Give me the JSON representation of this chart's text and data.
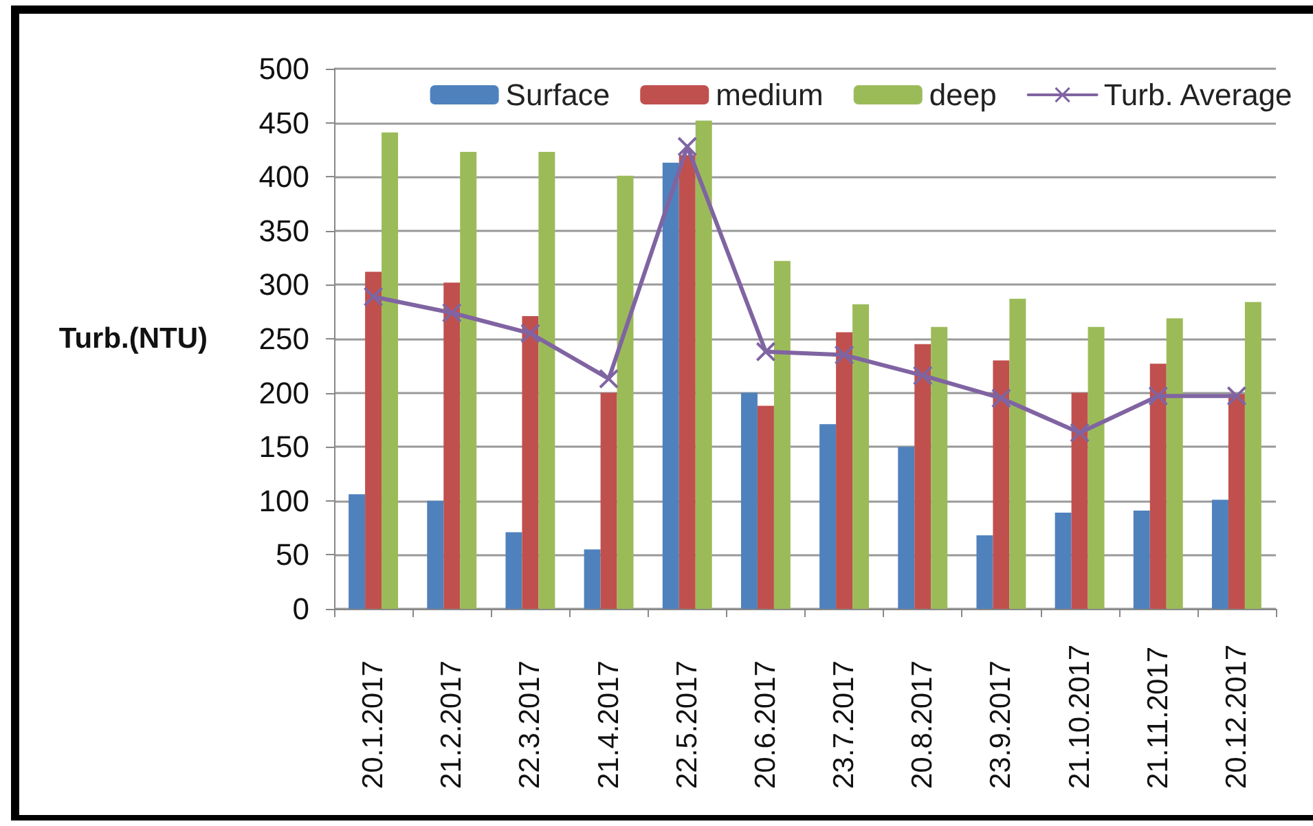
{
  "chart_data": {
    "type": "bar",
    "ylabel": "Turb.(NTU)",
    "categories": [
      "20.1.2017",
      "21.2.2017",
      "22.3.2017",
      "21.4.2017",
      "22.5.2017",
      "20.6.2017",
      "23.7.2017",
      "20.8.2017",
      "23.9.2017",
      "21.10.2017",
      "21.11.2017",
      "20.12.2017"
    ],
    "series": [
      {
        "name": "Surface",
        "color": "#4f81bd",
        "values": [
          106,
          100,
          71,
          55,
          413,
          200,
          171,
          150,
          68,
          89,
          91,
          101
        ]
      },
      {
        "name": "medium",
        "color": "#c0504d",
        "values": [
          312,
          302,
          271,
          200,
          420,
          188,
          256,
          245,
          230,
          200,
          227,
          199
        ]
      },
      {
        "name": "deep",
        "color": "#9bbb59",
        "values": [
          441,
          423,
          423,
          401,
          452,
          322,
          282,
          261,
          287,
          261,
          269,
          284
        ]
      },
      {
        "name": "Turb. Average",
        "type": "line",
        "color": "#8064a2",
        "values": [
          289,
          274,
          255,
          213,
          428,
          238,
          235,
          216,
          195,
          163,
          197,
          197
        ]
      }
    ],
    "ylim": [
      0,
      500
    ],
    "yticks": [
      0,
      50,
      100,
      150,
      200,
      250,
      300,
      350,
      400,
      450,
      500
    ],
    "grid": "y",
    "legend": "top right",
    "marker": "cross",
    "line_style": "solid"
  }
}
